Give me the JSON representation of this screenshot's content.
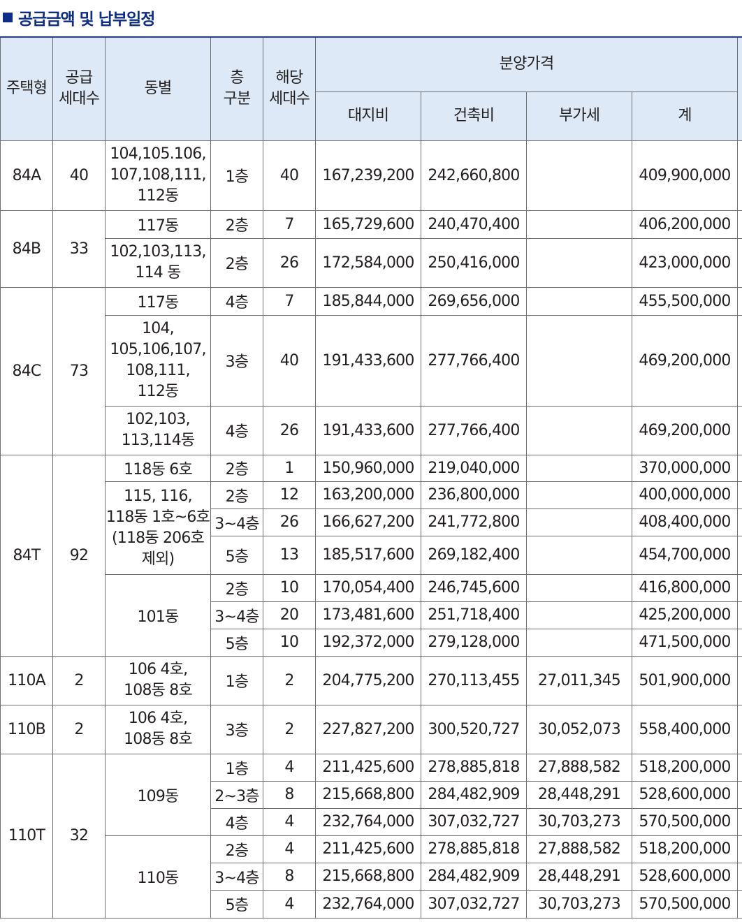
{
  "title": "공급금액 및 납부일정",
  "header": {
    "type": "주택형",
    "supply_units": [
      "공급",
      "세대수"
    ],
    "building": "동별",
    "floor": [
      "층",
      "구분"
    ],
    "units": [
      "해당",
      "세대수"
    ],
    "price_group": "분양가격",
    "land": "대지비",
    "construction": "건축비",
    "vat": "부가세",
    "total": "계"
  },
  "groups": [
    {
      "type": "84A",
      "supply": "40",
      "rows": [
        {
          "bldg": "104,105.106,\n107,108,111,\n112동",
          "bldg_span": 1,
          "floor": "1층",
          "units": "40",
          "land": "167,239,200",
          "construction": "242,660,800",
          "vat": "",
          "total": "409,900,000"
        }
      ]
    },
    {
      "type": "84B",
      "supply": "33",
      "rows": [
        {
          "bldg": "117동",
          "bldg_span": 1,
          "floor": "2층",
          "units": "7",
          "land": "165,729,600",
          "construction": "240,470,400",
          "vat": "",
          "total": "406,200,000"
        },
        {
          "bldg": "102,103,113,\n114 동",
          "bldg_span": 1,
          "floor": "2층",
          "units": "26",
          "land": "172,584,000",
          "construction": "250,416,000",
          "vat": "",
          "total": "423,000,000"
        }
      ]
    },
    {
      "type": "84C",
      "supply": "73",
      "rows": [
        {
          "bldg": "117동",
          "bldg_span": 1,
          "floor": "4층",
          "units": "7",
          "land": "185,844,000",
          "construction": "269,656,000",
          "vat": "",
          "total": "455,500,000"
        },
        {
          "bldg": "104,\n105,106,107,\n108,111,\n112동",
          "bldg_span": 1,
          "floor": "3층",
          "units": "40",
          "land": "191,433,600",
          "construction": "277,766,400",
          "vat": "",
          "total": "469,200,000"
        },
        {
          "bldg": "102,103,\n113,114동",
          "bldg_span": 1,
          "floor": "4층",
          "units": "26",
          "land": "191,433,600",
          "construction": "277,766,400",
          "vat": "",
          "total": "469,200,000"
        }
      ]
    },
    {
      "type": "84T",
      "supply": "92",
      "rows": [
        {
          "bldg": "118동 6호",
          "bldg_span": 1,
          "floor": "2층",
          "units": "1",
          "land": "150,960,000",
          "construction": "219,040,000",
          "vat": "",
          "total": "370,000,000"
        },
        {
          "bldg": "115, 116,\n118동 1호~6호\n(118동 206호\n제외)",
          "bldg_span": 3,
          "floor": "2층",
          "units": "12",
          "land": "163,200,000",
          "construction": "236,800,000",
          "vat": "",
          "total": "400,000,000"
        },
        {
          "bldg": null,
          "floor": "3~4층",
          "units": "26",
          "land": "166,627,200",
          "construction": "241,772,800",
          "vat": "",
          "total": "408,400,000"
        },
        {
          "bldg": null,
          "floor": "5층",
          "units": "13",
          "land": "185,517,600",
          "construction": "269,182,400",
          "vat": "",
          "total": "454,700,000"
        },
        {
          "bldg": "101동",
          "bldg_span": 3,
          "floor": "2층",
          "units": "10",
          "land": "170,054,400",
          "construction": "246,745,600",
          "vat": "",
          "total": "416,800,000"
        },
        {
          "bldg": null,
          "floor": "3~4층",
          "units": "20",
          "land": "173,481,600",
          "construction": "251,718,400",
          "vat": "",
          "total": "425,200,000"
        },
        {
          "bldg": null,
          "floor": "5층",
          "units": "10",
          "land": "192,372,000",
          "construction": "279,128,000",
          "vat": "",
          "total": "471,500,000"
        }
      ]
    },
    {
      "type": "110A",
      "supply": "2",
      "rows": [
        {
          "bldg": "106 4호,\n108동 8호",
          "bldg_span": 1,
          "floor": "1층",
          "units": "2",
          "land": "204,775,200",
          "construction": "270,113,455",
          "vat": "27,011,345",
          "total": "501,900,000"
        }
      ]
    },
    {
      "type": "110B",
      "supply": "2",
      "rows": [
        {
          "bldg": "106 4호,\n108동 8호",
          "bldg_span": 1,
          "floor": "3층",
          "units": "2",
          "land": "227,827,200",
          "construction": "300,520,727",
          "vat": "30,052,073",
          "total": "558,400,000"
        }
      ]
    },
    {
      "type": "110T",
      "supply": "32",
      "rows": [
        {
          "bldg": "109동",
          "bldg_span": 3,
          "floor": "1층",
          "units": "4",
          "land": "211,425,600",
          "construction": "278,885,818",
          "vat": "27,888,582",
          "total": "518,200,000"
        },
        {
          "bldg": null,
          "floor": "2~3층",
          "units": "8",
          "land": "215,668,800",
          "construction": "284,482,909",
          "vat": "28,448,291",
          "total": "528,600,000"
        },
        {
          "bldg": null,
          "floor": "4층",
          "units": "4",
          "land": "232,764,000",
          "construction": "307,032,727",
          "vat": "30,703,273",
          "total": "570,500,000"
        },
        {
          "bldg": "110동",
          "bldg_span": 3,
          "floor": "2층",
          "units": "4",
          "land": "211,425,600",
          "construction": "278,885,818",
          "vat": "27,888,582",
          "total": "518,200,000"
        },
        {
          "bldg": null,
          "floor": "3~4층",
          "units": "8",
          "land": "215,668,800",
          "construction": "284,482,909",
          "vat": "28,448,291",
          "total": "528,600,000"
        },
        {
          "bldg": null,
          "floor": "5층",
          "units": "4",
          "land": "232,764,000",
          "construction": "307,032,727",
          "vat": "30,703,273",
          "total": "570,500,000"
        }
      ]
    }
  ]
}
